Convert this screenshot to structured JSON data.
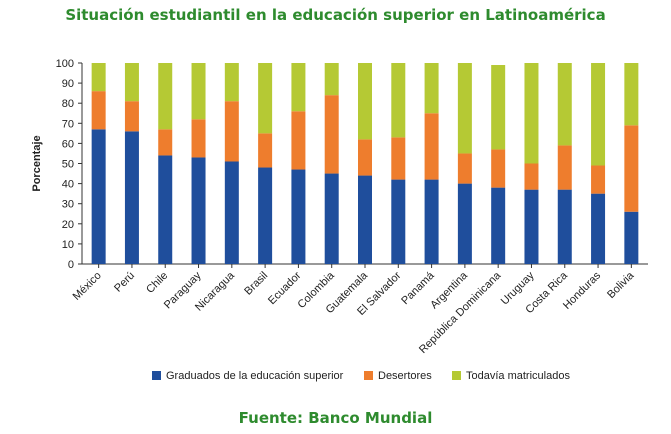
{
  "title": "Situación estudiantil en la educación superior en Latinoamérica",
  "source": "Fuente: Banco Mundial",
  "colors": {
    "title": "#2e8b2e",
    "source": "#2e8b2e",
    "axis": "#333333"
  },
  "chart_data": {
    "type": "bar",
    "stacked": true,
    "categories": [
      "México",
      "Perú",
      "Chile",
      "Paraguay",
      "Nicaragua",
      "Brasil",
      "Ecuador",
      "Colombia",
      "Guatemala",
      "El Salvador",
      "Panamá",
      "Argentina",
      "República Dominicana",
      "Uruguay",
      "Costa Rica",
      "Honduras",
      "Bolivia"
    ],
    "series": [
      {
        "name": "Graduados de la educación superior",
        "color": "#1f4e9c",
        "values": [
          67,
          66,
          54,
          53,
          51,
          48,
          47,
          45,
          44,
          42,
          42,
          40,
          38,
          37,
          37,
          35,
          26
        ]
      },
      {
        "name": "Desertores",
        "color": "#ee7d2d",
        "values": [
          19,
          15,
          13,
          19,
          30,
          17,
          29,
          39,
          18,
          21,
          33,
          15,
          19,
          13,
          22,
          14,
          43
        ]
      },
      {
        "name": "Todavía matriculados",
        "color": "#b5c934",
        "values": [
          14,
          19,
          33,
          28,
          19,
          35,
          24,
          16,
          38,
          37,
          25,
          45,
          42,
          50,
          41,
          51,
          31
        ]
      }
    ],
    "ylabel": "Porcentaje",
    "xlabel": "",
    "ylim": [
      0,
      100
    ],
    "yticks": [
      0,
      10,
      20,
      30,
      40,
      50,
      60,
      70,
      80,
      90,
      100
    ],
    "grid": false,
    "legend": "bottom"
  }
}
